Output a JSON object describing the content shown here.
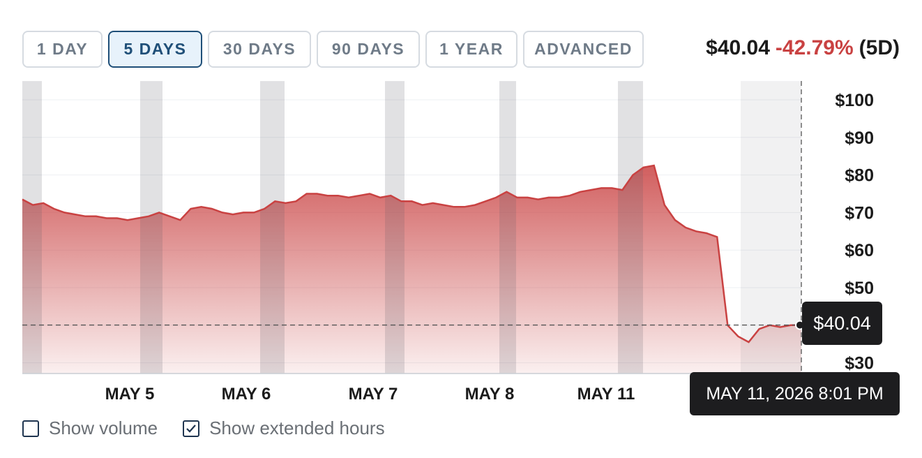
{
  "tabs": [
    {
      "label": "1 DAY",
      "active": false
    },
    {
      "label": "5 DAYS",
      "active": true
    },
    {
      "label": "30 DAYS",
      "active": false
    },
    {
      "label": "90 DAYS",
      "active": false
    },
    {
      "label": "1 YEAR",
      "active": false
    },
    {
      "label": "ADVANCED",
      "active": false
    }
  ],
  "quote": {
    "price": "$40.04",
    "change": "-42.79%",
    "period": "(5D)"
  },
  "tooltip": {
    "price": "$40.04",
    "time": "MAY 11, 2026 8:01 PM"
  },
  "options": [
    {
      "label": "Show volume",
      "checked": false
    },
    {
      "label": "Show extended hours",
      "checked": true
    }
  ],
  "colors": {
    "line": "#c94242",
    "accent": "#1f4f78",
    "negative": "#c94242"
  },
  "chart_data": {
    "type": "area",
    "x_tick_labels": [
      "MAY 5",
      "MAY 6",
      "MAY 7",
      "MAY 8",
      "MAY 11"
    ],
    "y_tick_labels": [
      "$100",
      "$90",
      "$80",
      "$70",
      "$60",
      "$50",
      "$30"
    ],
    "ylim": [
      25,
      105
    ],
    "grid": true,
    "current_price": 40.04,
    "series": [
      {
        "values": [
          73.5,
          72,
          72.5,
          71,
          70,
          69.5,
          69,
          69,
          68.5,
          68.5,
          68,
          68.5,
          69,
          70,
          69,
          68,
          71,
          71.5,
          71,
          70,
          69.5,
          70,
          70,
          71,
          73,
          72.5,
          73,
          75,
          75,
          74.5,
          74.5,
          74,
          74.5,
          75,
          74,
          74.5,
          73,
          73,
          72,
          72.5,
          72,
          71.5,
          71.5,
          72,
          73,
          74,
          75.5,
          74,
          74,
          73.5,
          74,
          74,
          74.5,
          75.5,
          76,
          76.5,
          76.5,
          76,
          80,
          82,
          82.5,
          72,
          68,
          66,
          65,
          64.5,
          63.5,
          40,
          37,
          35.5,
          39,
          40,
          39.5,
          40,
          40.04
        ]
      }
    ]
  }
}
